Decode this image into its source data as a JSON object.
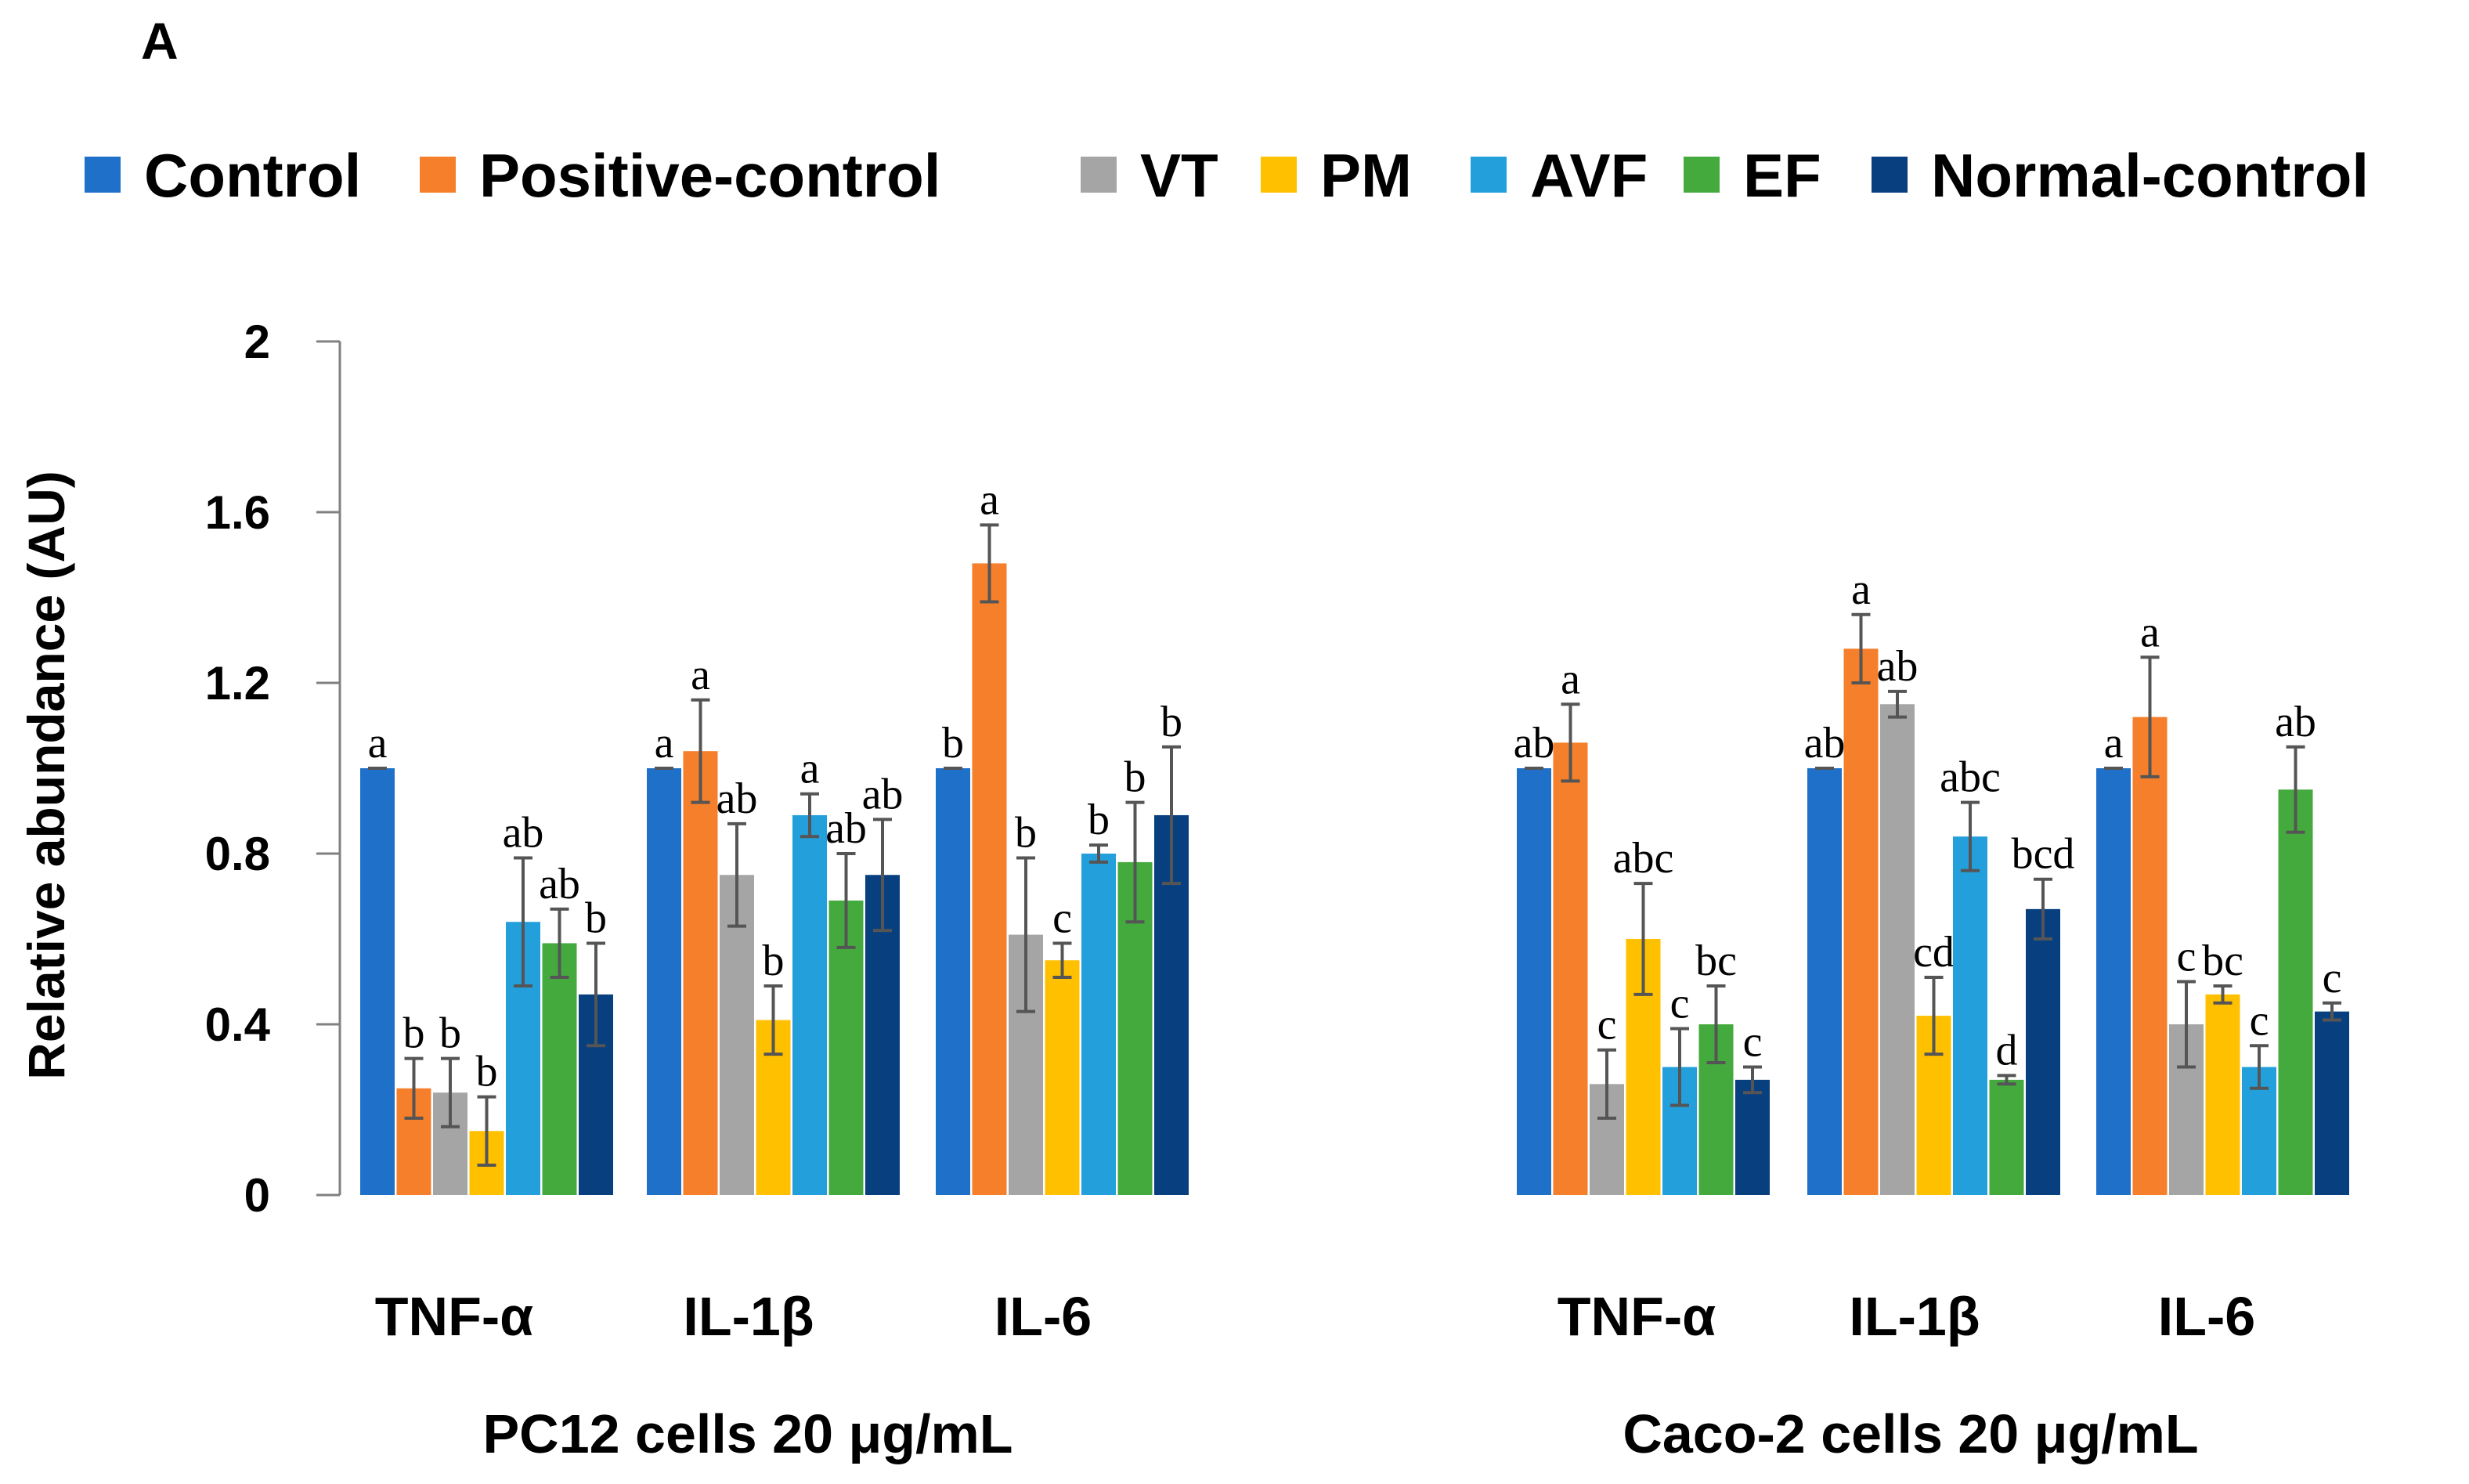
{
  "chart_data": {
    "type": "bar",
    "panel_label": "A",
    "ylabel": "Relative abundance (AU)",
    "ylim": [
      0,
      2
    ],
    "yticks": [
      0,
      0.4,
      0.8,
      1.2,
      1.6,
      2
    ],
    "ytick_labels": [
      "0",
      "0.4",
      "0.8",
      "1.2",
      "1.6",
      "2"
    ],
    "legend_position": "top",
    "series": [
      {
        "name": "Control",
        "color": "#1F70C8"
      },
      {
        "name": "Positive-control",
        "color": "#F57F2A"
      },
      {
        "name": "VT",
        "color": "#A5A5A5"
      },
      {
        "name": "PM",
        "color": "#FFC000"
      },
      {
        "name": "AVF",
        "color": "#23A0DB"
      },
      {
        "name": "EF",
        "color": "#44AA3E"
      },
      {
        "name": "Normal-control",
        "color": "#083F7F"
      }
    ],
    "groups": [
      {
        "name": "PC12 cells 20 μg/mL",
        "categories": [
          {
            "label": "TNF-α",
            "values": [
              1.0,
              0.25,
              0.24,
              0.15,
              0.64,
              0.59,
              0.47
            ],
            "errors": [
              0.0,
              0.07,
              0.08,
              0.08,
              0.15,
              0.08,
              0.12
            ],
            "letters": [
              "a",
              "b",
              "b",
              "b",
              "ab",
              "ab",
              "b"
            ]
          },
          {
            "label": "IL-1β",
            "values": [
              1.0,
              1.04,
              0.75,
              0.41,
              0.89,
              0.69,
              0.75
            ],
            "errors": [
              0.0,
              0.12,
              0.12,
              0.08,
              0.05,
              0.11,
              0.13
            ],
            "letters": [
              "a",
              "a",
              "ab",
              "b",
              "a",
              "ab",
              "ab"
            ]
          },
          {
            "label": "IL-6",
            "values": [
              1.0,
              1.48,
              0.61,
              0.55,
              0.8,
              0.78,
              0.89
            ],
            "errors": [
              0.0,
              0.09,
              0.18,
              0.04,
              0.02,
              0.14,
              0.16
            ],
            "letters": [
              "b",
              "a",
              "b",
              "c",
              "b",
              "b",
              "b"
            ]
          }
        ]
      },
      {
        "name": "Caco-2 cells 20 μg/mL",
        "categories": [
          {
            "label": "TNF-α",
            "values": [
              1.0,
              1.06,
              0.26,
              0.6,
              0.3,
              0.4,
              0.27
            ],
            "errors": [
              0.0,
              0.09,
              0.08,
              0.13,
              0.09,
              0.09,
              0.03
            ],
            "letters": [
              "ab",
              "a",
              "c",
              "abc",
              "c",
              "bc",
              "c"
            ]
          },
          {
            "label": "IL-1β",
            "values": [
              1.0,
              1.28,
              1.15,
              0.42,
              0.84,
              0.27,
              0.67
            ],
            "errors": [
              0.0,
              0.08,
              0.03,
              0.09,
              0.08,
              0.01,
              0.07
            ],
            "letters": [
              "ab",
              "a",
              "ab",
              "cd",
              "abc",
              "d",
              "bcd"
            ]
          },
          {
            "label": "IL-6",
            "values": [
              1.0,
              1.12,
              0.4,
              0.47,
              0.3,
              0.95,
              0.43
            ],
            "errors": [
              0.0,
              0.14,
              0.1,
              0.02,
              0.05,
              0.1,
              0.02
            ],
            "letters": [
              "a",
              "a",
              "c",
              "bc",
              "c",
              "ab",
              "c"
            ]
          }
        ]
      }
    ]
  }
}
